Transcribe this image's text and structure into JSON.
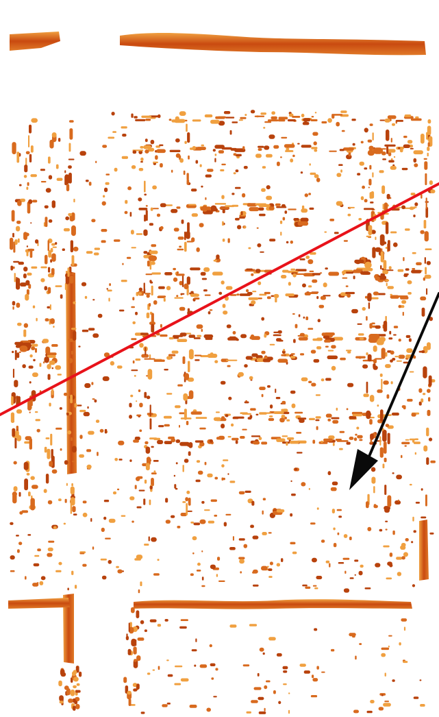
{
  "colors": {
    "background": "#ffffff",
    "deposit_dark": "#b8420c",
    "deposit_mid": "#d86a1e",
    "deposit_light": "#f0a040",
    "line_red": "#e8121a",
    "arrow_black": "#0a0a0a"
  },
  "features": {
    "red_line": "straight-red-line",
    "arrow": "black-arrow-pointer",
    "texture": "orange-speckle-grid-pattern"
  }
}
